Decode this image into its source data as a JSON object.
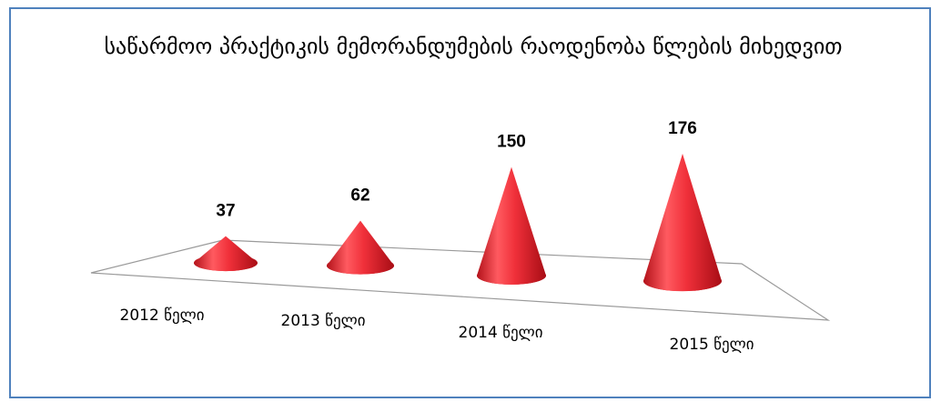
{
  "chart_data": {
    "type": "cone",
    "title": "საწარმოო პრაქტიკის მემორანდუმების რაოდენობა წლების მიხედვით",
    "categories": [
      "2012 წელი",
      "2013 წელი",
      "2014 წელი",
      "2015 წელი"
    ],
    "values": [
      37,
      62,
      150,
      176
    ],
    "color": "#e8202a"
  }
}
